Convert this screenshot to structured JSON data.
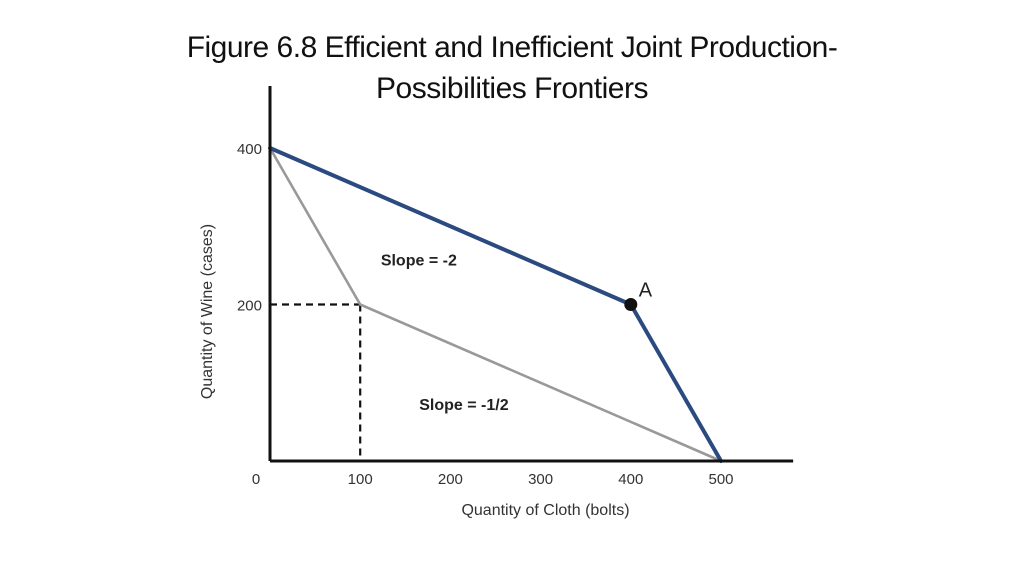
{
  "title": {
    "line1": "Figure 6.8 Efficient and Inefficient Joint Production-",
    "line2": "Possibilities Frontiers"
  },
  "chart_data": {
    "type": "line",
    "xlabel": "Quantity of Cloth (bolts)",
    "ylabel": "Quantity of Wine (cases)",
    "xlim": [
      0,
      580
    ],
    "ylim": [
      0,
      400
    ],
    "x_ticks": [
      "0",
      "100",
      "200",
      "300",
      "400",
      "500"
    ],
    "x_tick_values": [
      0,
      100,
      200,
      300,
      400,
      500
    ],
    "y_ticks": [
      "400",
      "200"
    ],
    "y_tick_values": [
      400,
      200
    ],
    "grid": false,
    "series": [
      {
        "points": [
          [
            0,
            400
          ],
          [
            400,
            200
          ],
          [
            500,
            0
          ]
        ],
        "color": "#2b4a7f"
      },
      {
        "points": [
          [
            0,
            400
          ],
          [
            100,
            200
          ],
          [
            500,
            0
          ]
        ],
        "color": "#999999"
      }
    ],
    "dashed_guides": [
      [
        [
          0,
          200
        ],
        [
          100,
          200
        ]
      ],
      [
        [
          100,
          200
        ],
        [
          100,
          0
        ]
      ]
    ],
    "point": {
      "label": "A",
      "x": 400,
      "y": 200
    },
    "annotations": [
      {
        "text": "Slope = -2",
        "x": 165,
        "y": 250
      },
      {
        "text": "Slope = -1/2",
        "x": 215,
        "y": 65
      }
    ]
  }
}
